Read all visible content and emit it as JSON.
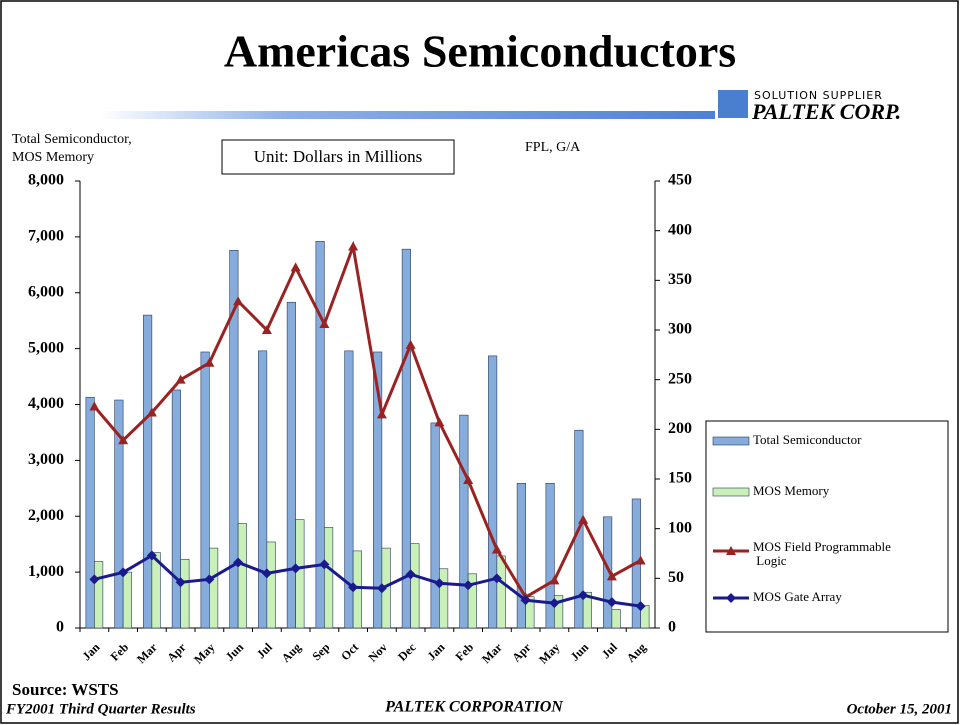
{
  "chart_data": {
    "type": "bar",
    "title": "Americas Semiconductors",
    "logo_tagline": "SOLUTION SUPPLIER",
    "logo_name": "PALTEK CORP.",
    "y_label": [
      "Total Semiconductor,",
      "MOS Memory"
    ],
    "y2_label": "FPL, G/A",
    "unit_note": "Unit: Dollars in Millions",
    "source": "Source: WSTS",
    "footer_left": "FY2001 Third Quarter Results",
    "footer_center": "PALTEK CORPORATION",
    "footer_right": "October 15, 2001",
    "categories": [
      "Jan",
      "Feb",
      "Mar",
      "Apr",
      "May",
      "Jun",
      "Jul",
      "Aug",
      "Sep",
      "Oct",
      "Nov",
      "Dec",
      "Jan",
      "Feb",
      "Mar",
      "Apr",
      "May",
      "Jun",
      "Jul",
      "Aug"
    ],
    "series": [
      {
        "name": "Total Semiconductor",
        "type": "bar",
        "color": "#86acdc",
        "values": [
          4130,
          4080,
          5600,
          4260,
          4940,
          6760,
          4960,
          5830,
          6920,
          4960,
          4940,
          6780,
          3670,
          3810,
          4870,
          2590,
          2590,
          3540,
          1990,
          2310
        ]
      },
      {
        "name": "MOS Memory",
        "type": "bar",
        "color": "#c8f0b8",
        "values": [
          1190,
          1000,
          1350,
          1230,
          1430,
          1870,
          1540,
          1940,
          1800,
          1380,
          1430,
          1510,
          1060,
          970,
          1290,
          560,
          580,
          640,
          330,
          400
        ]
      },
      {
        "name": "MOS Field Programmable Logic",
        "type": "line",
        "axis": "y2",
        "color": "#992222",
        "marker": "triangle",
        "values": [
          223,
          189,
          217,
          250,
          267,
          329,
          300,
          363,
          306,
          384,
          215,
          285,
          207,
          149,
          79,
          31,
          48,
          109,
          52,
          68
        ]
      },
      {
        "name": "MOS Gate Array",
        "type": "line",
        "axis": "y2",
        "color": "#1a1a8c",
        "marker": "diamond",
        "values": [
          49,
          56,
          73,
          46,
          49,
          66,
          55,
          60,
          64,
          41,
          40,
          54,
          45,
          43,
          50,
          28,
          25,
          33,
          26,
          22
        ]
      }
    ],
    "ylim": [
      0,
      8000
    ],
    "yticks": [
      0,
      {
        "value": 1000,
        "label": "1,000"
      },
      {
        "value": 2000,
        "label": "2,000"
      },
      {
        "value": 3000,
        "label": "3,000"
      },
      {
        "value": 4000,
        "label": "4,000"
      },
      {
        "value": 5000,
        "label": "5,000"
      },
      {
        "value": 6000,
        "label": "6,000"
      },
      {
        "value": 7000,
        "label": "7,000"
      },
      {
        "value": 8000,
        "label": "8,000"
      }
    ],
    "y2lim": [
      0,
      450
    ],
    "y2ticks": [
      0,
      50,
      100,
      150,
      200,
      250,
      300,
      350,
      400,
      450
    ],
    "grid": false,
    "legend": "right"
  }
}
